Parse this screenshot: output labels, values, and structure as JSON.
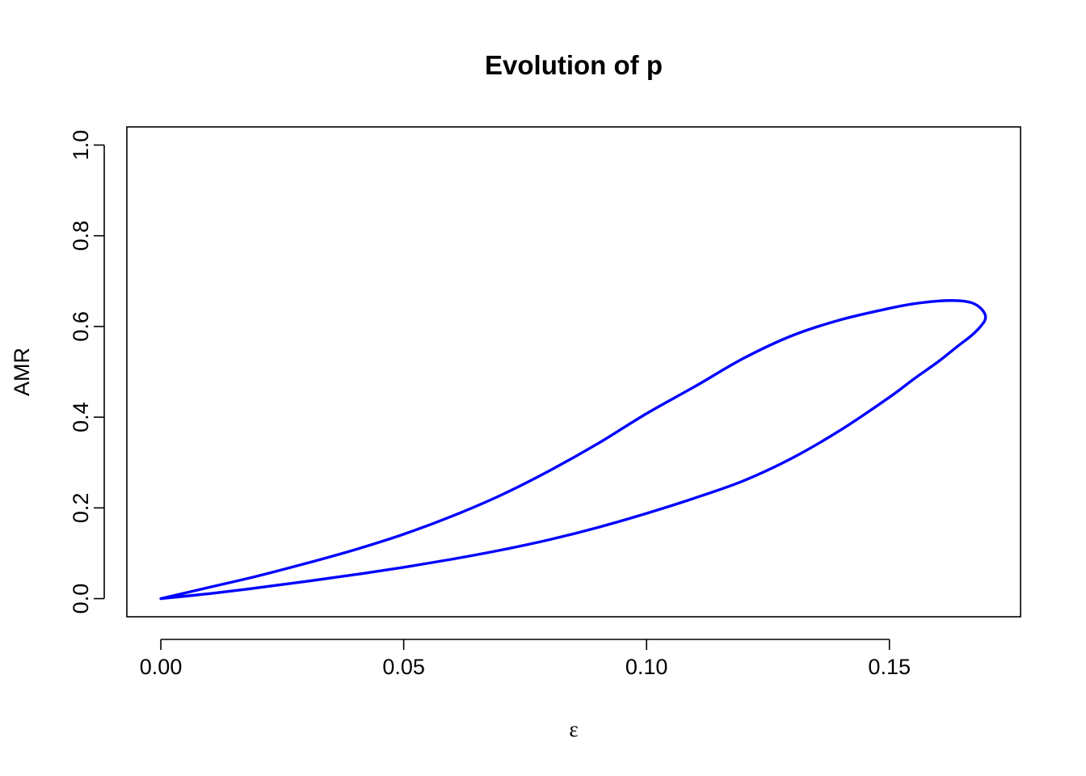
{
  "chart_data": {
    "type": "line",
    "title": "Evolution of p",
    "xlabel": "ε",
    "ylabel": "AMR",
    "xlim": [
      -0.007,
      0.177
    ],
    "ylim": [
      -0.04,
      1.04
    ],
    "x_ticks": [
      0.0,
      0.05,
      0.1,
      0.15
    ],
    "x_tick_labels": [
      "0.00",
      "0.05",
      "0.10",
      "0.15"
    ],
    "y_ticks": [
      0.0,
      0.2,
      0.4,
      0.6,
      0.8,
      1.0
    ],
    "y_tick_labels": [
      "0.0",
      "0.2",
      "0.4",
      "0.6",
      "0.8",
      "1.0"
    ],
    "grid": false,
    "series": [
      {
        "color": "#0000ff",
        "x": [
          0.0,
          0.01,
          0.02,
          0.03,
          0.04,
          0.05,
          0.06,
          0.07,
          0.08,
          0.09,
          0.1,
          0.11,
          0.12,
          0.13,
          0.14,
          0.15,
          0.155,
          0.16,
          0.164,
          0.167,
          0.169,
          0.1698,
          0.169,
          0.167,
          0.164,
          0.16,
          0.155,
          0.15,
          0.14,
          0.13,
          0.12,
          0.11,
          0.1,
          0.09,
          0.08,
          0.07,
          0.06,
          0.05,
          0.04,
          0.03,
          0.02,
          0.01,
          0.0
        ],
        "y": [
          0.0,
          0.025,
          0.05,
          0.078,
          0.108,
          0.142,
          0.182,
          0.228,
          0.282,
          0.342,
          0.408,
          0.468,
          0.53,
          0.58,
          0.615,
          0.64,
          0.65,
          0.656,
          0.657,
          0.652,
          0.638,
          0.62,
          0.603,
          0.581,
          0.556,
          0.522,
          0.484,
          0.444,
          0.372,
          0.31,
          0.26,
          0.222,
          0.188,
          0.157,
          0.13,
          0.107,
          0.087,
          0.069,
          0.053,
          0.038,
          0.024,
          0.011,
          0.0
        ]
      }
    ]
  }
}
